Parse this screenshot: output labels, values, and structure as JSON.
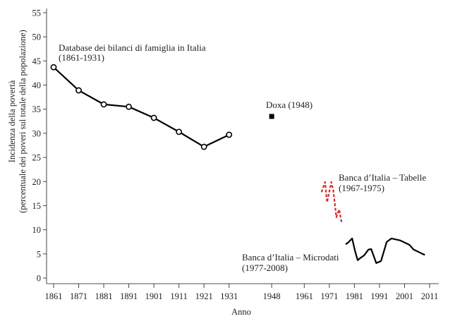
{
  "chart_data": {
    "type": "line",
    "title": "",
    "xlabel": "Anno",
    "ylabel": "Incidenza della povertà",
    "ylabel_sub": "(percentuale dei poveri sul totale della popolazione)",
    "ylim": [
      0,
      55
    ],
    "yticks": [
      0,
      5,
      10,
      15,
      20,
      25,
      30,
      35,
      40,
      45,
      50,
      55
    ],
    "xticks": [
      1861,
      1871,
      1881,
      1891,
      1901,
      1911,
      1921,
      1931,
      1948,
      1961,
      1971,
      1981,
      1991,
      2001,
      2011
    ],
    "grid": false,
    "legend": "inline annotations",
    "series": [
      {
        "name": "Database dei bilanci di famiglia in Italia (1861-1931)",
        "label_line1": "Database dei bilanci di famiglia in Italia",
        "label_line2": "(1861-1931)",
        "style": "solid line with hollow circle markers",
        "color": "#000000",
        "x": [
          1861,
          1871,
          1881,
          1891,
          1901,
          1911,
          1921,
          1931
        ],
        "values": [
          43.7,
          38.9,
          36.0,
          35.5,
          33.2,
          30.3,
          27.2,
          29.7
        ]
      },
      {
        "name": "Doxa (1948)",
        "label_line1": "Doxa (1948)",
        "style": "filled square marker",
        "color": "#000000",
        "x": [
          1948
        ],
        "values": [
          33.5
        ]
      },
      {
        "name": "Banca d'Italia – Tabelle (1967-1975)",
        "label_line1": "Banca d’Italia – Tabelle",
        "label_line2": "(1967-1975)",
        "style": "dashed line",
        "color": "#d42a2a",
        "x": [
          1967.9,
          1969.3,
          1970.1,
          1971.8,
          1972.6,
          1973.8,
          1974.9,
          1976.0
        ],
        "values": [
          17.8,
          19.9,
          15.7,
          19.9,
          18.1,
          12.6,
          14.2,
          11.3
        ]
      },
      {
        "name": "Banca d'Italia – Microdati (1977-2008)",
        "label_line1": "Banca d’Italia – Microdati",
        "label_line2": "(1977-2008)",
        "style": "solid line",
        "color": "#000000",
        "x": [
          1977.5,
          1978.4,
          1980.1,
          1981.2,
          1982.3,
          1983.5,
          1984.9,
          1986.6,
          1987.7,
          1989.7,
          1991.6,
          1993.9,
          1995.8,
          1999.2,
          2002.9,
          2004.6,
          2008.2,
          2009.1
        ],
        "values": [
          7.0,
          7.3,
          8.2,
          5.7,
          3.7,
          4.2,
          4.7,
          5.9,
          6.0,
          3.1,
          3.5,
          7.5,
          8.2,
          7.8,
          6.9,
          5.9,
          5.0,
          4.8
        ]
      }
    ]
  }
}
